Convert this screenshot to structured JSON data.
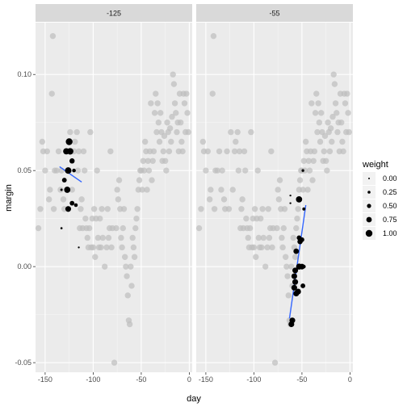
{
  "chart_data": {
    "type": "scatter",
    "xlabel": "day",
    "ylabel": "margin",
    "xlim": [
      -160,
      3
    ],
    "ylim": [
      -0.055,
      0.127
    ],
    "x_ticks": [
      -150,
      -100,
      -50,
      0
    ],
    "y_ticks": [
      -0.05,
      0.0,
      0.05,
      0.1
    ],
    "x_tick_labels": [
      "-150",
      "-100",
      "-50",
      "0"
    ],
    "y_tick_labels": [
      "-0.05",
      "0.00",
      "0.05",
      "0.10"
    ],
    "grid": true,
    "legend": {
      "title": "weight",
      "position": "right",
      "entries": [
        {
          "label": "0.00",
          "value": 0.0
        },
        {
          "label": "0.25",
          "value": 0.25
        },
        {
          "label": "0.50",
          "value": 0.5
        },
        {
          "label": "0.75",
          "value": 0.75
        },
        {
          "label": "1.00",
          "value": 1.0
        }
      ]
    },
    "colors": {
      "background_point": "#bdbdbd",
      "weighted_point": "#000000",
      "fit_line": "#3366ff",
      "panel": "#ebebeb",
      "strip": "#d9d9d9"
    },
    "background_points": [
      [
        -157,
        0.02
      ],
      [
        -155,
        0.03
      ],
      [
        -153,
        0.065
      ],
      [
        -152,
        0.06
      ],
      [
        -150,
        0.05
      ],
      [
        -148,
        0.06
      ],
      [
        -146,
        0.035
      ],
      [
        -145,
        0.04
      ],
      [
        -143,
        0.09
      ],
      [
        -142,
        0.12
      ],
      [
        -141,
        0.03
      ],
      [
        -140,
        0.05
      ],
      [
        -138,
        0.05
      ],
      [
        -136,
        0.06
      ],
      [
        -134,
        0.04
      ],
      [
        -133,
        0.05
      ],
      [
        -131,
        0.035
      ],
      [
        -130,
        0.03
      ],
      [
        -128,
        0.06
      ],
      [
        -126,
        0.03
      ],
      [
        -124,
        0.07
      ],
      [
        -122,
        0.04
      ],
      [
        -120,
        0.06
      ],
      [
        -119,
        0.065
      ],
      [
        -117,
        0.07
      ],
      [
        -116,
        0.05
      ],
      [
        -115,
        0.06
      ],
      [
        -114,
        0.02
      ],
      [
        -113,
        0.03
      ],
      [
        -112,
        0.035
      ],
      [
        -111,
        0.02
      ],
      [
        -110,
        0.06
      ],
      [
        -109,
        0.05
      ],
      [
        -108,
        0.025
      ],
      [
        -107,
        0.02
      ],
      [
        -106,
        0.015
      ],
      [
        -105,
        0.01
      ],
      [
        -104,
        0.02
      ],
      [
        -103,
        0.07
      ],
      [
        -102,
        0.01
      ],
      [
        -101,
        0.025
      ],
      [
        -100,
        0.01
      ],
      [
        -99,
        0.03
      ],
      [
        -98,
        0.005
      ],
      [
        -97,
        0.025
      ],
      [
        -96,
        0.05
      ],
      [
        -95,
        0.015
      ],
      [
        -94,
        0.01
      ],
      [
        -93,
        0.025
      ],
      [
        -92,
        0.01
      ],
      [
        -91,
        0.03
      ],
      [
        -90,
        0.015
      ],
      [
        -88,
        0.0
      ],
      [
        -86,
        0.01
      ],
      [
        -85,
        0.03
      ],
      [
        -84,
        0.015
      ],
      [
        -83,
        0.02
      ],
      [
        -82,
        0.06
      ],
      [
        -81,
        0.01
      ],
      [
        -80,
        0.02
      ],
      [
        -78,
        -0.05
      ],
      [
        -76,
        0.02
      ],
      [
        -75,
        0.04
      ],
      [
        -74,
        0.035
      ],
      [
        -73,
        0.045
      ],
      [
        -72,
        0.03
      ],
      [
        -71,
        0.015
      ],
      [
        -70,
        0.01
      ],
      [
        -69,
        0.02
      ],
      [
        -68,
        0.03
      ],
      [
        -67,
        0.005
      ],
      [
        -66,
        0.0
      ],
      [
        -65,
        -0.005
      ],
      [
        -64,
        -0.015
      ],
      [
        -63,
        -0.028
      ],
      [
        -62,
        -0.03
      ],
      [
        -61,
        0.0
      ],
      [
        -60,
        -0.01
      ],
      [
        -59,
        0.015
      ],
      [
        -58,
        0.01
      ],
      [
        -57,
        0.005
      ],
      [
        -56,
        0.02
      ],
      [
        -55,
        0.025
      ],
      [
        -54,
        0.03
      ],
      [
        -53,
        0.04
      ],
      [
        -52,
        0.045
      ],
      [
        -51,
        0.05
      ],
      [
        -50,
        0.05
      ],
      [
        -49,
        0.04
      ],
      [
        -48,
        0.055
      ],
      [
        -47,
        0.05
      ],
      [
        -46,
        0.065
      ],
      [
        -45,
        0.06
      ],
      [
        -44,
        0.04
      ],
      [
        -43,
        0.055
      ],
      [
        -42,
        0.05
      ],
      [
        -41,
        0.06
      ],
      [
        -40,
        0.085
      ],
      [
        -39,
        0.045
      ],
      [
        -38,
        0.055
      ],
      [
        -37,
        0.06
      ],
      [
        -36,
        0.08
      ],
      [
        -35,
        0.09
      ],
      [
        -34,
        0.07
      ],
      [
        -33,
        0.085
      ],
      [
        -32,
        0.075
      ],
      [
        -31,
        0.065
      ],
      [
        -30,
        0.08
      ],
      [
        -29,
        0.07
      ],
      [
        -28,
        0.055
      ],
      [
        -27,
        0.06
      ],
      [
        -26,
        0.068
      ],
      [
        -25,
        0.055
      ],
      [
        -24,
        0.05
      ],
      [
        -23,
        0.075
      ],
      [
        -22,
        0.07
      ],
      [
        -21,
        0.06
      ],
      [
        -20,
        0.072
      ],
      [
        -19,
        0.065
      ],
      [
        -18,
        0.078
      ],
      [
        -17,
        0.1
      ],
      [
        -16,
        0.095
      ],
      [
        -15,
        0.085
      ],
      [
        -14,
        0.08
      ],
      [
        -13,
        0.07
      ],
      [
        -12,
        0.075
      ],
      [
        -11,
        0.06
      ],
      [
        -10,
        0.09
      ],
      [
        -9,
        0.075
      ],
      [
        -8,
        0.065
      ],
      [
        -7,
        0.06
      ],
      [
        -6,
        0.09
      ],
      [
        -5,
        0.085
      ],
      [
        -4,
        0.07
      ],
      [
        -3,
        0.09
      ],
      [
        -2,
        0.08
      ],
      [
        -1,
        0.07
      ]
    ],
    "panels": [
      {
        "label": "-125",
        "weighted_points": [
          {
            "x": -128,
            "y": 0.06,
            "w": 0.9
          },
          {
            "x": -125,
            "y": 0.065,
            "w": 1.0
          },
          {
            "x": -124,
            "y": 0.06,
            "w": 0.95
          },
          {
            "x": -126,
            "y": 0.05,
            "w": 0.95
          },
          {
            "x": -127,
            "y": 0.04,
            "w": 0.9
          },
          {
            "x": -130,
            "y": 0.045,
            "w": 0.6
          },
          {
            "x": -122,
            "y": 0.055,
            "w": 0.7
          },
          {
            "x": -120,
            "y": 0.05,
            "w": 0.4
          },
          {
            "x": -133,
            "y": 0.04,
            "w": 0.15
          },
          {
            "x": -122,
            "y": 0.033,
            "w": 0.6
          },
          {
            "x": -118,
            "y": 0.032,
            "w": 0.4
          },
          {
            "x": -126,
            "y": 0.03,
            "w": 0.8
          },
          {
            "x": -133,
            "y": 0.02,
            "w": 0.1
          },
          {
            "x": -115,
            "y": 0.01,
            "w": 0.05
          }
        ],
        "fit_line": [
          [
            -135,
            0.052
          ],
          [
            -112,
            0.044
          ]
        ]
      },
      {
        "label": "-55",
        "weighted_points": [
          {
            "x": -62,
            "y": 0.037,
            "w": 0.05
          },
          {
            "x": -62,
            "y": 0.033,
            "w": 0.05
          },
          {
            "x": -53,
            "y": 0.035,
            "w": 0.9
          },
          {
            "x": -48,
            "y": 0.03,
            "w": 0.3
          },
          {
            "x": -49,
            "y": 0.05,
            "w": 0.2
          },
          {
            "x": -53,
            "y": 0.015,
            "w": 0.6
          },
          {
            "x": -50,
            "y": 0.014,
            "w": 0.6
          },
          {
            "x": -52,
            "y": 0.013,
            "w": 0.7
          },
          {
            "x": -56,
            "y": 0.008,
            "w": 0.75
          },
          {
            "x": -50,
            "y": 0.0,
            "w": 0.8
          },
          {
            "x": -53,
            "y": 0.0,
            "w": 0.85
          },
          {
            "x": -48,
            "y": 0.0,
            "w": 0.4
          },
          {
            "x": -57,
            "y": -0.002,
            "w": 0.8
          },
          {
            "x": -58,
            "y": -0.005,
            "w": 0.8
          },
          {
            "x": -57,
            "y": -0.008,
            "w": 0.8
          },
          {
            "x": -58,
            "y": -0.011,
            "w": 0.8
          },
          {
            "x": -49,
            "y": -0.01,
            "w": 0.6
          },
          {
            "x": -56,
            "y": -0.014,
            "w": 0.8
          },
          {
            "x": -54,
            "y": -0.013,
            "w": 0.8
          },
          {
            "x": -60,
            "y": -0.028,
            "w": 0.8
          },
          {
            "x": -61,
            "y": -0.03,
            "w": 0.8
          }
        ],
        "fit_line": [
          [
            -63,
            -0.027
          ],
          [
            -46,
            0.032
          ]
        ]
      }
    ]
  }
}
